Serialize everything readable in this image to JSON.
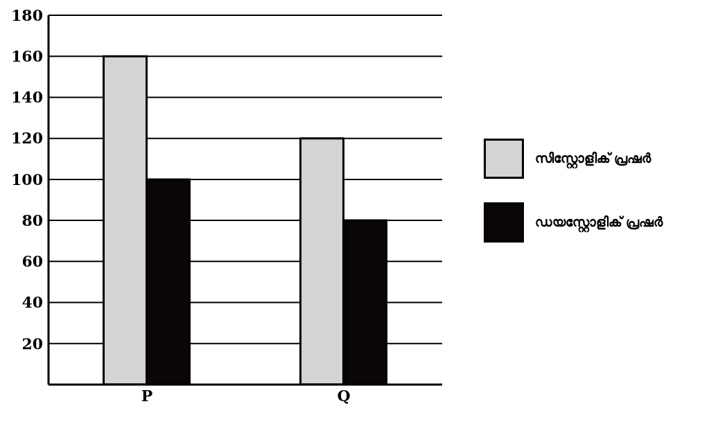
{
  "chart_data": {
    "type": "bar",
    "categories": [
      "P",
      "Q"
    ],
    "series": [
      {
        "name": "സിസ്റ്റോളിക് പ്രഷർ",
        "color": "#d4d4d4",
        "values": [
          160,
          120
        ]
      },
      {
        "name": "ഡയസ്റ്റോളിക് പ്രഷർ",
        "color": "#0a0508",
        "values": [
          100,
          80
        ]
      }
    ],
    "ylim": [
      0,
      180
    ],
    "yticks": [
      {
        "value": 0,
        "label": null
      },
      20,
      40,
      60,
      80,
      100,
      120,
      140,
      160,
      180
    ],
    "grid": "y",
    "legend": "right"
  }
}
